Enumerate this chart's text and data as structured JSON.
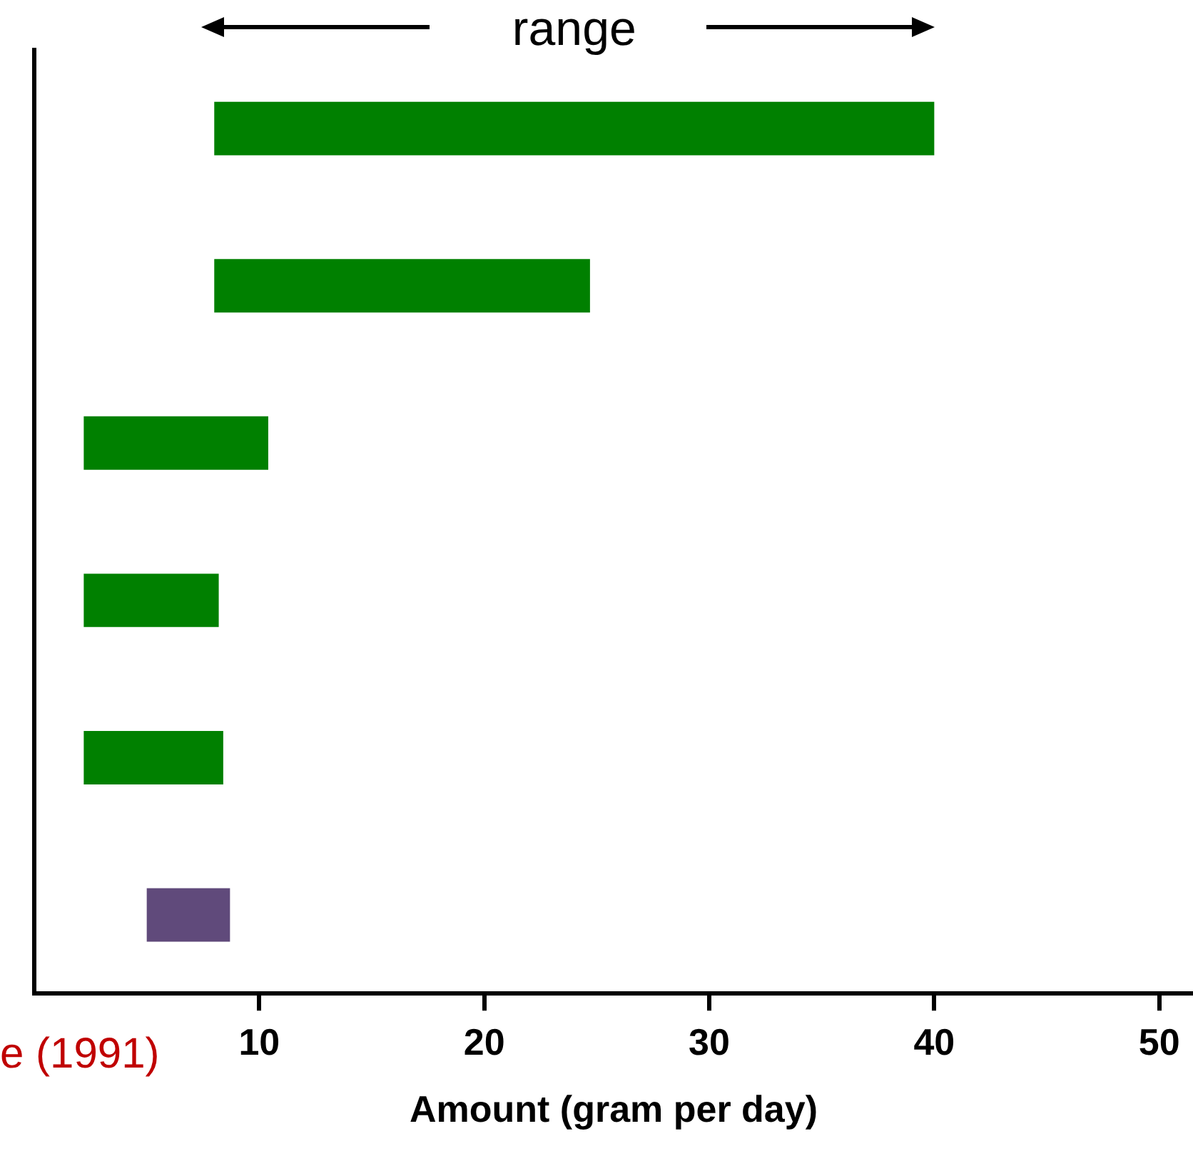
{
  "chart_data": {
    "type": "bar",
    "orientation": "horizontal",
    "xlabel": "Amount (gram per day)",
    "categories": [
      null,
      null,
      null,
      null,
      null,
      null
    ],
    "base": [
      8,
      8,
      2.2,
      2.2,
      2.2,
      5
    ],
    "values": [
      32,
      16.7,
      8.2,
      6,
      6.2,
      3.7
    ],
    "colors": [
      "#008000",
      "#008000",
      "#008000",
      "#008000",
      "#008000",
      "#604a7b"
    ],
    "xlim": [
      0,
      51.5
    ],
    "xticks": [
      10,
      20,
      30,
      40,
      50
    ],
    "tick_labels": "x",
    "annotations": [
      "range",
      "e (1991)"
    ]
  }
}
